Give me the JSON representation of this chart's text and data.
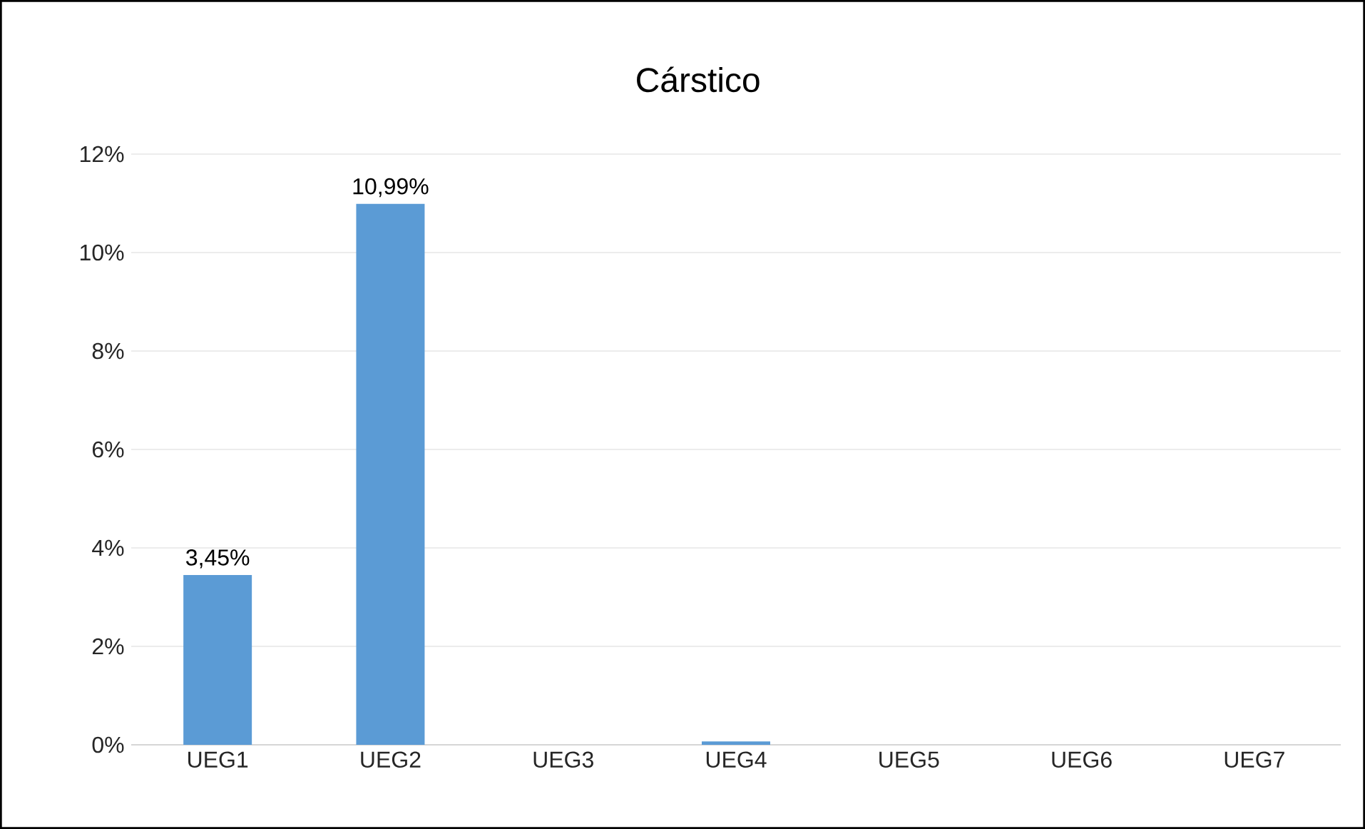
{
  "chart_data": {
    "type": "bar",
    "title": "Cárstico",
    "categories": [
      "UEG1",
      "UEG2",
      "UEG3",
      "UEG4",
      "UEG5",
      "UEG6",
      "UEG7"
    ],
    "values": [
      3.45,
      10.99,
      0,
      0.07,
      0,
      0,
      0
    ],
    "value_labels": [
      "3,45%",
      "10,99%",
      null,
      null,
      null,
      null,
      null
    ],
    "color": "#5b9bd5",
    "ylim": [
      0,
      12
    ],
    "yticks": [
      {
        "value": 0,
        "label": "0%"
      },
      {
        "value": 2,
        "label": "2%"
      },
      {
        "value": 4,
        "label": "4%"
      },
      {
        "value": 6,
        "label": "6%"
      },
      {
        "value": 8,
        "label": "8%"
      },
      {
        "value": 10,
        "label": "10%"
      },
      {
        "value": 12,
        "label": "12%"
      }
    ],
    "grid": "y"
  }
}
